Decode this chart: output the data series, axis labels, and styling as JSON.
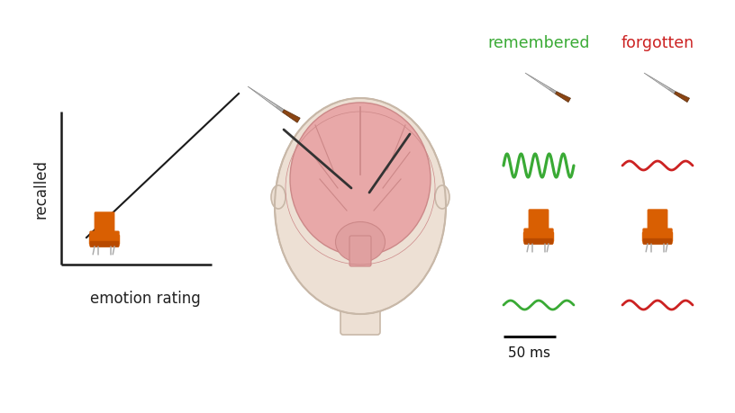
{
  "background_color": "#ffffff",
  "graph": {
    "xlabel": "emotion rating",
    "ylabel": "recalled",
    "line_color": "#1a1a1a",
    "axis_color": "#1a1a1a"
  },
  "right_panel": {
    "remembered_color": "#3aaa35",
    "forgotten_color": "#cc2222",
    "label_remembered": "remembered",
    "label_forgotten": "forgotten",
    "scalebar_label": "50 ms"
  },
  "chair_color": "#d95f02",
  "wave_green": "#3aaa35",
  "wave_red": "#cc2222"
}
